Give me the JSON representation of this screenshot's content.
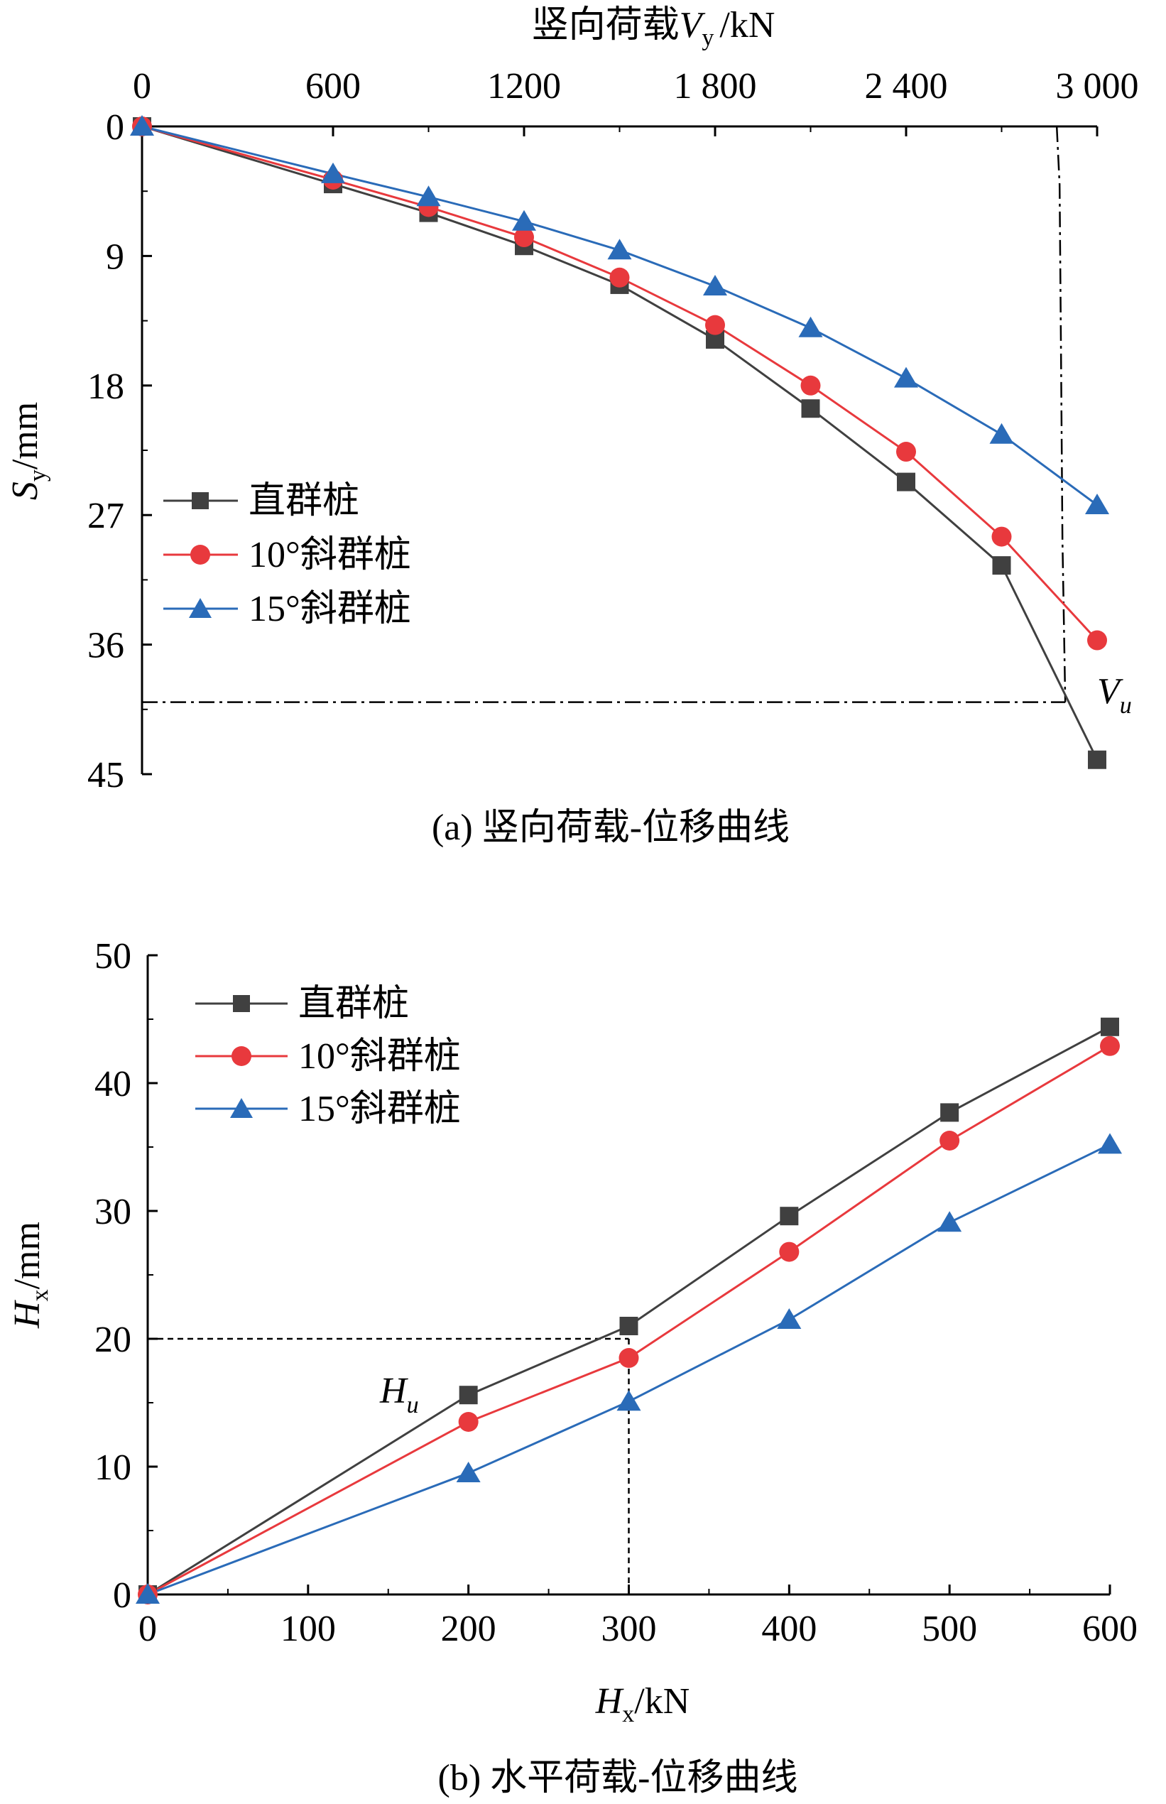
{
  "panel_a": {
    "caption": "(a) 竖向荷载-位移曲线",
    "x_label_main": "竖向荷载",
    "x_label_var": "V",
    "x_label_sub": "y",
    "x_label_unit": "/kN",
    "y_label_var": "S",
    "y_label_sub": "y",
    "y_label_unit": "/mm",
    "annotation_var": "V",
    "annotation_sub": "u",
    "x_tick_labels": [
      "0",
      "600",
      "1200",
      "1 800",
      "2 400",
      "3 000"
    ],
    "y_tick_labels": [
      "0",
      "9",
      "18",
      "27",
      "36",
      "45"
    ],
    "legend": [
      "直群桩",
      "10°斜群桩",
      "15°斜群桩"
    ]
  },
  "panel_b": {
    "caption": "(b) 水平荷载-位移曲线",
    "x_label_var": "H",
    "x_label_sub": "x",
    "x_label_unit": "/kN",
    "y_label_var": "H",
    "y_label_sub": "x",
    "y_label_unit": "/mm",
    "annotation_var": "H",
    "annotation_sub": "u",
    "x_tick_labels": [
      "0",
      "100",
      "200",
      "300",
      "400",
      "500",
      "600"
    ],
    "y_tick_labels": [
      "0",
      "10",
      "20",
      "30",
      "40",
      "50"
    ],
    "legend": [
      "直群桩",
      "10°斜群桩",
      "15°斜群桩"
    ]
  },
  "colors": {
    "series_1": "#404040",
    "series_2": "#e8393d",
    "series_3": "#2a6bb8",
    "axis": "#000000",
    "guide": "#000000"
  },
  "chart_data": [
    {
      "type": "line",
      "axis_x_position": "top",
      "y_inverted": true,
      "x": [
        0,
        600,
        900,
        1200,
        1500,
        1800,
        2100,
        2400,
        2700,
        3000
      ],
      "xlim": [
        0,
        3000
      ],
      "ylim": [
        0,
        45
      ],
      "grid": false,
      "legend_position": "left",
      "series": [
        {
          "name": "直群桩",
          "marker": "square",
          "values": [
            0,
            4.0,
            6.0,
            8.3,
            11.0,
            14.8,
            19.6,
            24.7,
            30.5,
            44.0
          ]
        },
        {
          "name": "10°斜群桩",
          "marker": "circle",
          "values": [
            0,
            3.7,
            5.6,
            7.7,
            10.5,
            13.8,
            18.0,
            22.6,
            28.5,
            35.7
          ]
        },
        {
          "name": "15°斜群桩",
          "marker": "triangle",
          "values": [
            0,
            3.3,
            4.9,
            6.6,
            8.6,
            11.1,
            14.0,
            17.5,
            21.4,
            26.3
          ]
        }
      ],
      "guide_lines": {
        "Vu_load": 2900,
        "Vu_settlement": 40
      }
    },
    {
      "type": "line",
      "x": [
        0,
        200,
        300,
        400,
        500,
        600
      ],
      "xlim": [
        0,
        600
      ],
      "ylim": [
        0,
        50
      ],
      "grid": false,
      "legend_position": "top-left",
      "series": [
        {
          "name": "直群桩",
          "marker": "square",
          "values": [
            0,
            15.6,
            21.0,
            29.6,
            37.7,
            44.4
          ]
        },
        {
          "name": "10°斜群桩",
          "marker": "circle",
          "values": [
            0,
            13.5,
            18.5,
            26.8,
            35.5,
            42.9
          ]
        },
        {
          "name": "15°斜群桩",
          "marker": "triangle",
          "values": [
            0,
            9.5,
            15.1,
            21.5,
            29.1,
            35.2
          ]
        }
      ],
      "guide_lines": {
        "Hu_load": 300,
        "Hu_displacement": 20
      }
    }
  ]
}
